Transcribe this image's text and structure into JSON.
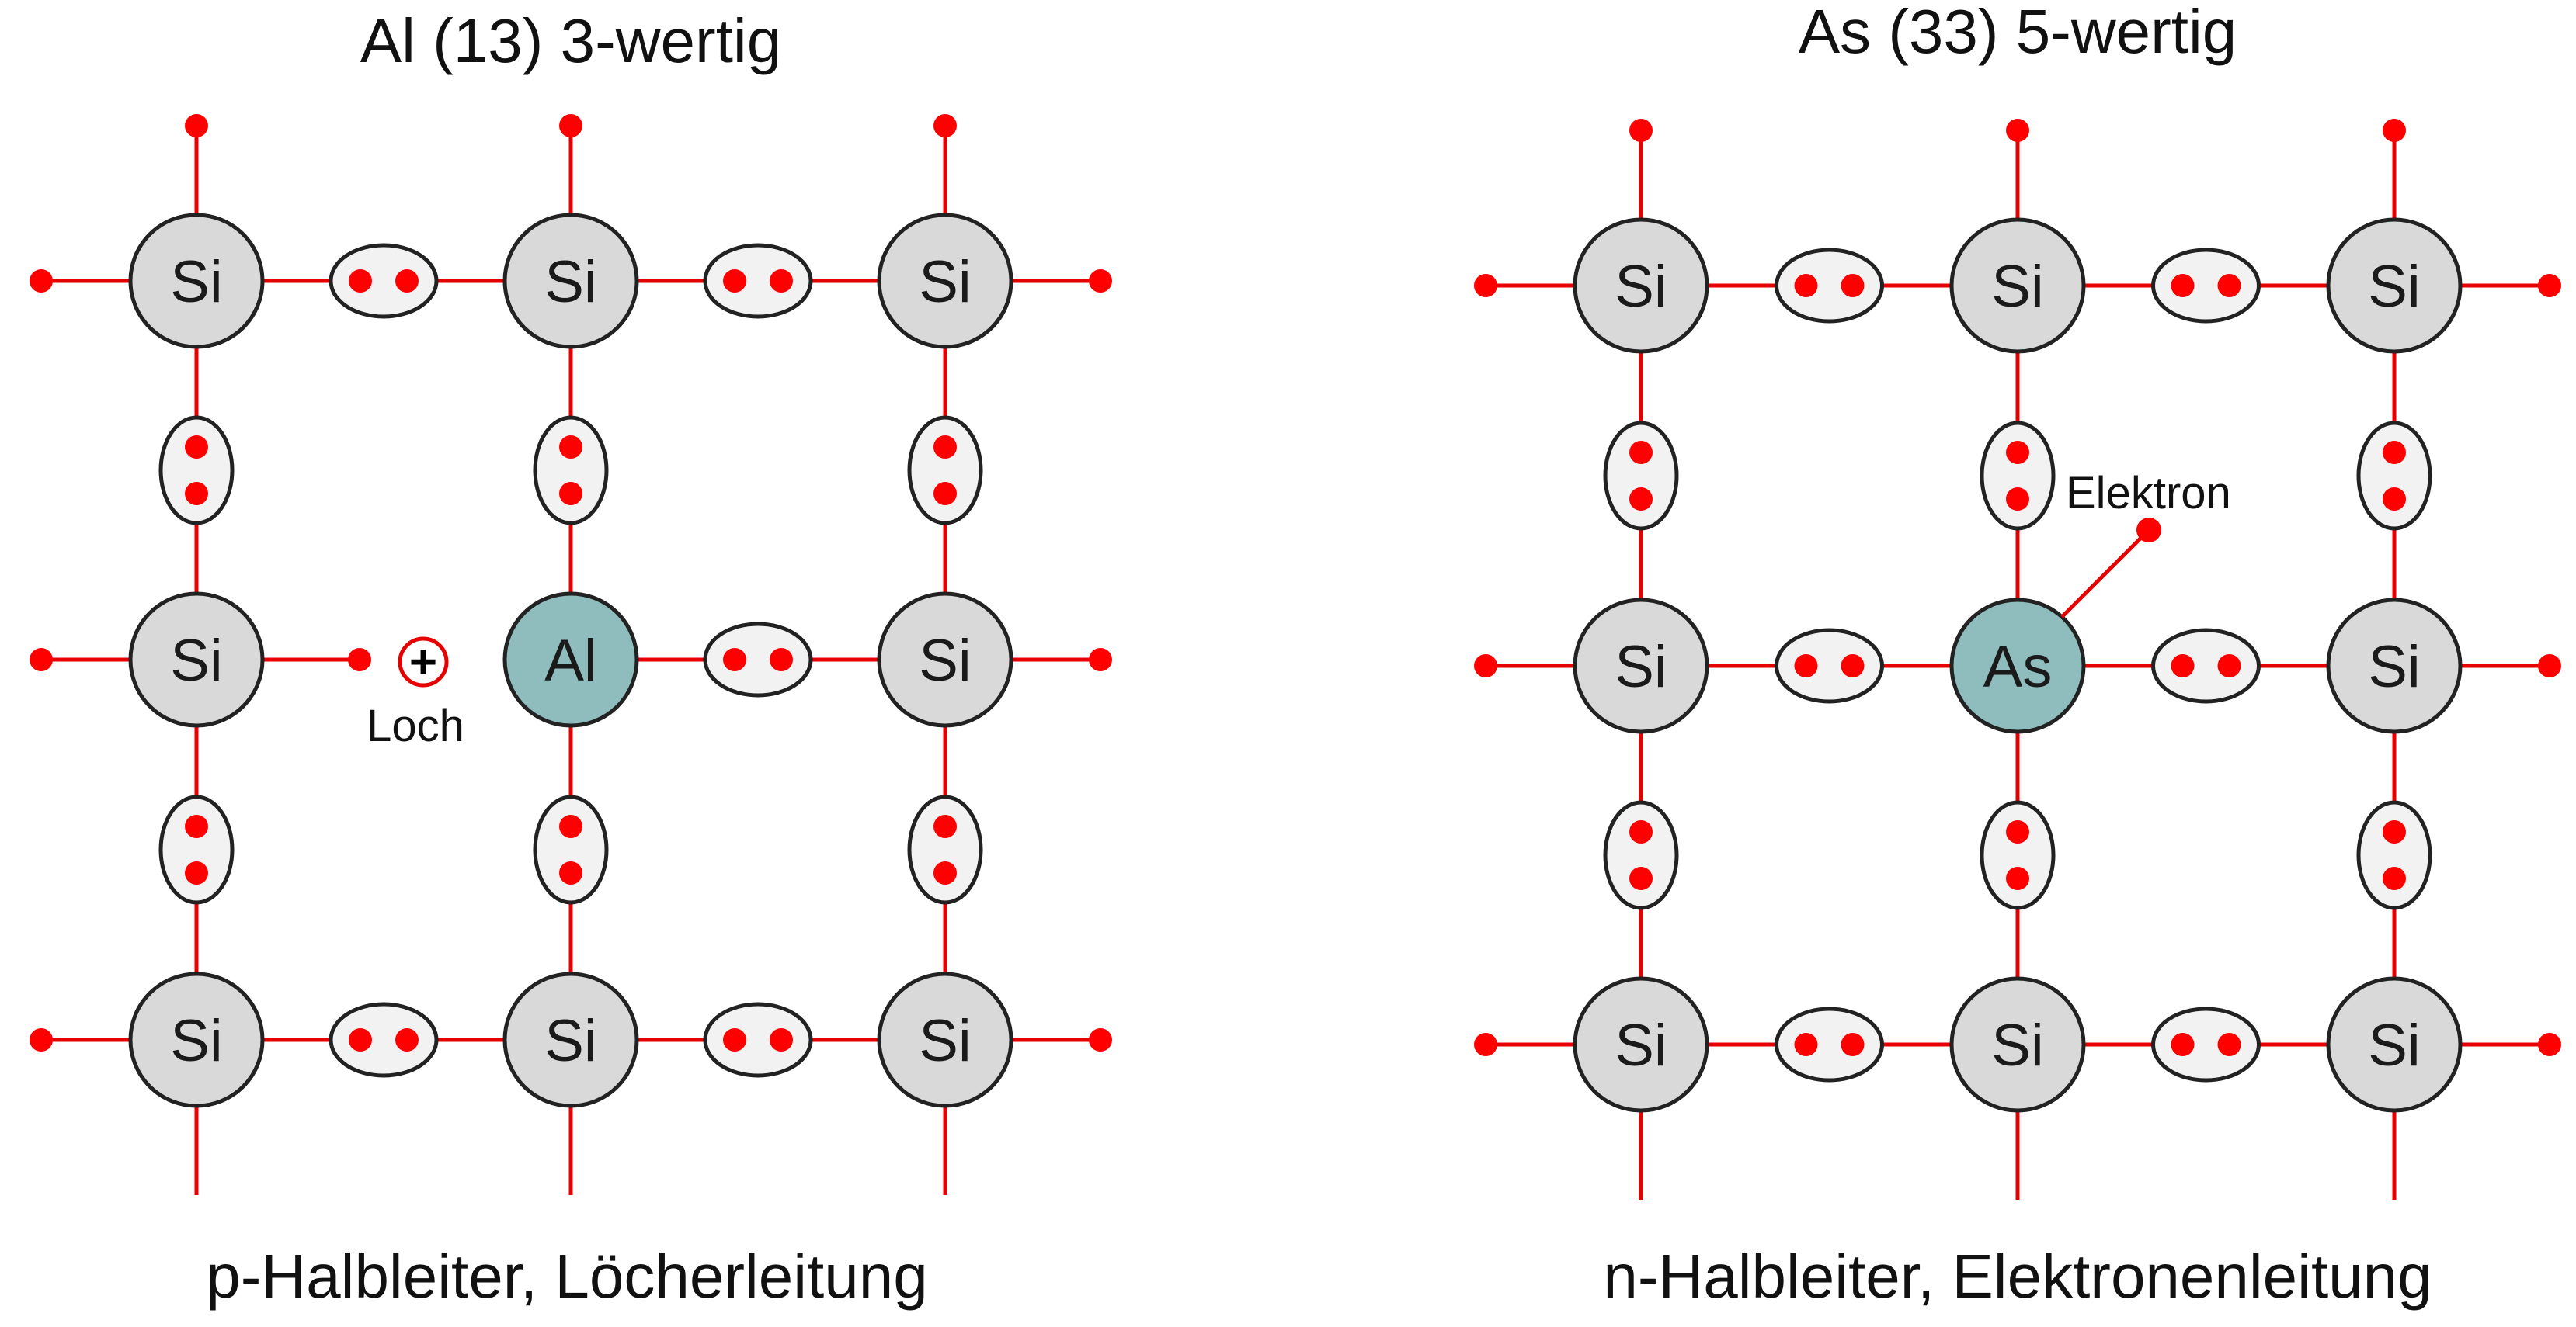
{
  "colors": {
    "electron": "#ff0000",
    "bond_line": "#e60000",
    "si_fill": "#d9d9d9",
    "dopant_fill": "#8fbcbc",
    "ellipse_fill": "#f2f2f2",
    "outline": "#222222"
  },
  "panels": [
    {
      "title": "Al (13) 3-wertig",
      "caption": "p-Halbleiter, Löcherleitung",
      "atoms": [
        [
          "Si",
          "Si",
          "Si"
        ],
        [
          "Si",
          "Al",
          "Si"
        ],
        [
          "Si",
          "Si",
          "Si"
        ]
      ],
      "dopant": "Al",
      "missing_bond": "left-of-dopant",
      "annotation": {
        "label": "Loch",
        "symbol": "+"
      }
    },
    {
      "title": "As (33) 5-wertig",
      "caption": "n-Halbleiter, Elektronenleitung",
      "atoms": [
        [
          "Si",
          "Si",
          "Si"
        ],
        [
          "Si",
          "As",
          "Si"
        ],
        [
          "Si",
          "Si",
          "Si"
        ]
      ],
      "dopant": "As",
      "missing_bond": "none",
      "annotation": {
        "label": "Elektron"
      }
    }
  ]
}
